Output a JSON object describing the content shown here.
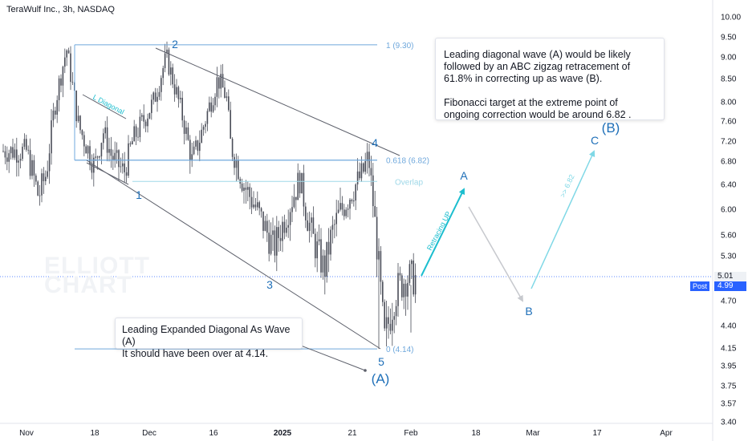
{
  "header": {
    "title": "TeraWulf Inc., 3h, NASDAQ"
  },
  "watermark": [
    "ELLIOTT",
    "CHART"
  ],
  "price_axis": {
    "ticks": [
      "10.00",
      "9.50",
      "9.00",
      "8.50",
      "8.00",
      "7.60",
      "7.20",
      "6.80",
      "6.40",
      "6.00",
      "5.60",
      "5.30",
      "5.01",
      "4.70",
      "4.40",
      "4.15",
      "3.95",
      "3.75",
      "3.57",
      "3.40"
    ],
    "last_value": "5.01",
    "post_label": "Post",
    "post_value": "4.99"
  },
  "time_axis": {
    "ticks": [
      "Nov",
      "18",
      "Dec",
      "16",
      "2025",
      "21",
      "Feb",
      "18",
      "Mar",
      "17",
      "Apr"
    ]
  },
  "notes": {
    "top": "Leading diagonal wave (A) would be likely followed by an ABC zigzag retracement of 61.8% in correcting up as wave (B).\n\nFibonacci target at the extreme point of ongoing correction would be around 6.82 .",
    "bottom": "Leading Expanded Diagonal As Wave (A)\nIt should have been over at 4.14."
  },
  "colors": {
    "up": "#26a69a",
    "down": "#ef5350",
    "candle": "#4a4d58",
    "fib": "#6fa8dc",
    "overlap": "#9fd8e8",
    "wave": "#1e6fb8",
    "channel": "#5d606b",
    "arrow_teal": "#1cbecf",
    "arrow_gray": "#c7c9ce",
    "arrow_light": "#7fd8e6"
  },
  "chart_data": {
    "type": "candlestick",
    "title": "TeraWulf Inc., 3h, NASDAQ",
    "x_ticks": [
      "Nov",
      "18",
      "Dec",
      "16",
      "2025",
      "21",
      "Feb",
      "18",
      "Mar",
      "17",
      "Apr"
    ],
    "y_ticks": [
      10.0,
      9.5,
      9.0,
      8.5,
      8.0,
      7.6,
      7.2,
      6.8,
      6.4,
      6.0,
      5.6,
      5.3,
      4.7,
      4.4,
      4.15,
      3.95,
      3.75,
      3.57,
      3.4
    ],
    "y_scale": "log",
    "last_price": 5.01,
    "post_price": 4.99,
    "price_path": [
      [
        "Nov 1",
        7.0
      ],
      [
        "Nov 4",
        6.2
      ],
      [
        "Nov 6",
        6.6
      ],
      [
        "Nov 8",
        7.9
      ],
      [
        "Nov 11",
        9.2
      ],
      [
        "Nov 12",
        8.6
      ],
      [
        "Nov 14",
        7.5
      ],
      [
        "Nov 18",
        6.7
      ],
      [
        "Nov 20",
        7.4
      ],
      [
        "Nov 22",
        6.9
      ],
      [
        "Nov 25",
        6.6
      ],
      [
        "Nov 27",
        7.2
      ],
      [
        "Dec 2",
        8.0
      ],
      [
        "Dec 5",
        9.0
      ],
      [
        "Dec 9",
        7.6
      ],
      [
        "Dec 11",
        6.8
      ],
      [
        "Dec 13",
        7.3
      ],
      [
        "Dec 17",
        8.5
      ],
      [
        "Dec 19",
        8.1
      ],
      [
        "Dec 20",
        7.1
      ],
      [
        "Dec 23",
        6.4
      ],
      [
        "Dec 26",
        6.0
      ],
      [
        "Dec 30",
        5.4
      ],
      [
        "Jan 2",
        5.9
      ],
      [
        "Jan 6",
        6.5
      ],
      [
        "Jan 8",
        5.9
      ],
      [
        "Jan 10",
        5.5
      ],
      [
        "Jan 13",
        5.1
      ],
      [
        "Jan 15",
        5.6
      ],
      [
        "Jan 17",
        5.9
      ],
      [
        "Jan 21",
        6.3
      ],
      [
        "Jan 23",
        6.6
      ],
      [
        "Jan 24",
        6.9
      ],
      [
        "Jan 27",
        4.2
      ],
      [
        "Jan 29",
        4.8
      ],
      [
        "Jan 31",
        5.0
      ],
      [
        "Feb 3",
        4.99
      ]
    ],
    "annotations": {
      "fib_levels": [
        "1 (9.30)",
        "0.618 (6.82)",
        "0 (4.14)"
      ],
      "overlap_label": "Overlap",
      "diagonal_label": "L Diagonal",
      "wave_labels": [
        "1",
        "2",
        "3",
        "4",
        "5",
        "(A)",
        "A",
        "B",
        "C",
        "(B)"
      ],
      "arrow_labels": [
        "Retracing UP",
        ">> 6.82"
      ]
    }
  }
}
